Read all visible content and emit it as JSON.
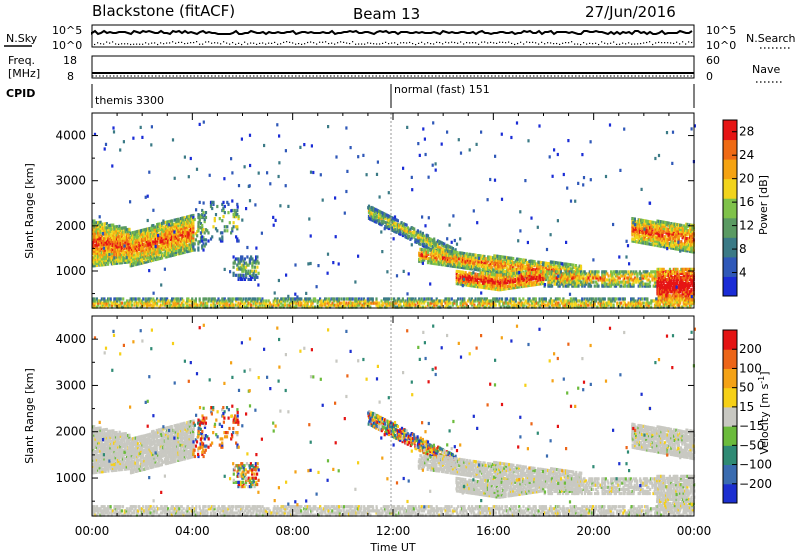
{
  "header": {
    "station": "Blackstone (fitACF)",
    "beam": "Beam 13",
    "date": "27/Jun/2016"
  },
  "top_panels": {
    "nsky_label": "N.Sky",
    "nsky_ticks": [
      "10^5",
      "10^0"
    ],
    "nsearch_label": "N.Search",
    "nsearch_ticks": [
      "10^5",
      "10^0"
    ],
    "freq_label_1": "Freq.",
    "freq_label_2": "[MHz]",
    "freq_ticks": [
      "18",
      "8"
    ],
    "nave_label": "Nave",
    "nave_ticks": [
      "60",
      "0"
    ],
    "cpid_label": "CPID",
    "cpid_segments": [
      "themis 3300",
      "normal (fast) 151"
    ]
  },
  "colors": {
    "power": [
      "#1a2cd6",
      "#2f58b8",
      "#3b7a86",
      "#5a9a62",
      "#7fc24a",
      "#f2d41c",
      "#f5a312",
      "#ef6a14",
      "#e61414"
    ],
    "velocity": [
      "#1c2fd0",
      "#3a6cb0",
      "#2f8a74",
      "#6bbb3c",
      "#c8c8c2",
      "#f6d017",
      "#f4a216",
      "#ec6518",
      "#e41313"
    ],
    "ground_scatter": "#c9c9c2"
  },
  "chart_data": [
    {
      "type": "heatmap",
      "name": "power",
      "xlabel": "Time UT",
      "ylabel": "Slant Range [km]",
      "x_ticks": [
        "00:00",
        "04:00",
        "08:00",
        "12:00",
        "16:00",
        "20:00",
        "00:00"
      ],
      "y_ticks": [
        "1000",
        "2000",
        "3000",
        "4000"
      ],
      "xlim_hours": [
        0,
        24
      ],
      "ylim_km": [
        180,
        4500
      ],
      "colorbar_label": "Power [dB]",
      "colorbar_ticks": [
        "4",
        "8",
        "12",
        "16",
        "20",
        "24",
        "28"
      ],
      "colorbar_range": [
        0,
        30
      ]
    },
    {
      "type": "heatmap",
      "name": "velocity",
      "xlabel": "Time UT",
      "ylabel": "Slant Range [km]",
      "x_ticks": [
        "00:00",
        "04:00",
        "08:00",
        "12:00",
        "16:00",
        "20:00",
        "00:00"
      ],
      "y_ticks": [
        "1000",
        "2000",
        "3000",
        "4000"
      ],
      "xlim_hours": [
        0,
        24
      ],
      "ylim_km": [
        180,
        4500
      ],
      "colorbar_label": "Velocity [m s",
      "colorbar_label_sup": "-1",
      "colorbar_label_end": "]",
      "colorbar_ticks": [
        "200",
        "100",
        "50",
        "15",
        "−15",
        "−50",
        "−100",
        "−200"
      ]
    }
  ]
}
